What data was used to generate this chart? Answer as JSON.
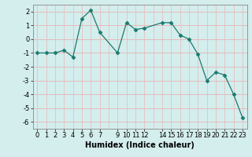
{
  "x": [
    0,
    1,
    2,
    3,
    4,
    5,
    6,
    7,
    9,
    10,
    11,
    12,
    14,
    15,
    16,
    17,
    18,
    19,
    20,
    21,
    22,
    23
  ],
  "y": [
    -1,
    -1,
    -1,
    -0.8,
    -1.3,
    1.5,
    2.1,
    0.5,
    -1,
    1.2,
    0.7,
    0.8,
    1.2,
    1.2,
    0.3,
    0.0,
    -1.1,
    -3.0,
    -2.4,
    -2.6,
    -4.0,
    -5.7
  ],
  "line_color": "#1a7a6e",
  "marker": "D",
  "marker_size": 2.5,
  "bg_color": "#d4eded",
  "grid_h_color": "#e8b8b8",
  "grid_v_color": "#e8b8b8",
  "xlabel": "Humidex (Indice chaleur)",
  "xlabel_fontsize": 7,
  "tick_fontsize": 6,
  "xlim": [
    -0.5,
    23.5
  ],
  "ylim": [
    -6.5,
    2.5
  ],
  "yticks": [
    -6,
    -5,
    -4,
    -3,
    -2,
    -1,
    0,
    1,
    2
  ],
  "xticks": [
    0,
    1,
    2,
    3,
    4,
    5,
    6,
    7,
    9,
    10,
    11,
    12,
    14,
    15,
    16,
    17,
    18,
    19,
    20,
    21,
    22,
    23
  ],
  "all_x_for_vgrid": [
    0,
    1,
    2,
    3,
    4,
    5,
    6,
    7,
    8,
    9,
    10,
    11,
    12,
    13,
    14,
    15,
    16,
    17,
    18,
    19,
    20,
    21,
    22,
    23
  ]
}
